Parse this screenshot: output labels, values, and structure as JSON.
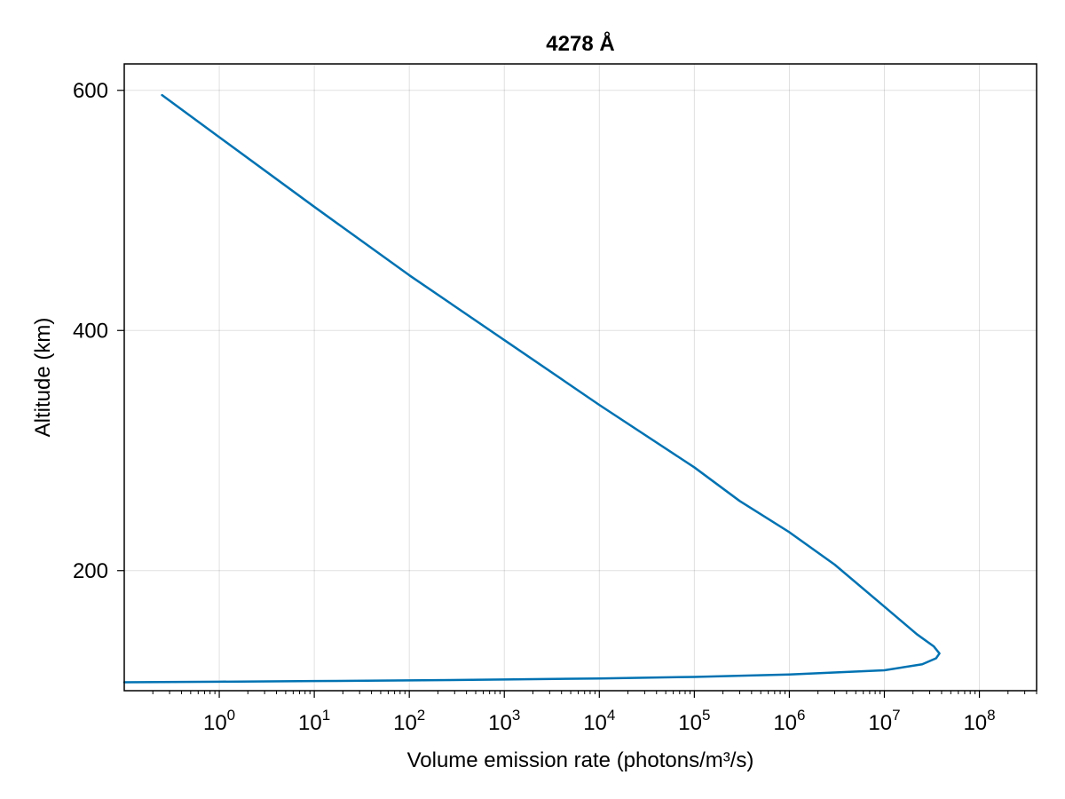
{
  "chart_data": {
    "type": "line",
    "title": "4278 Å",
    "xlabel": "Volume emission rate (photons/m³/s)",
    "ylabel": "Altitude (km)",
    "xscale": "log10",
    "xlim": [
      0.1,
      400000000
    ],
    "ylim": [
      100,
      622
    ],
    "grid": true,
    "legend": "none",
    "line_color": "#0072b2",
    "xticks": [
      {
        "base": "10",
        "exp": "0",
        "value": 1
      },
      {
        "base": "10",
        "exp": "1",
        "value": 10
      },
      {
        "base": "10",
        "exp": "2",
        "value": 100
      },
      {
        "base": "10",
        "exp": "3",
        "value": 1000
      },
      {
        "base": "10",
        "exp": "4",
        "value": 10000
      },
      {
        "base": "10",
        "exp": "5",
        "value": 100000
      },
      {
        "base": "10",
        "exp": "6",
        "value": 1000000
      },
      {
        "base": "10",
        "exp": "7",
        "value": 10000000
      },
      {
        "base": "10",
        "exp": "8",
        "value": 100000000
      }
    ],
    "yticks": [
      {
        "label": "200",
        "value": 200
      },
      {
        "label": "400",
        "value": 400
      },
      {
        "label": "600",
        "value": 600
      }
    ],
    "series": [
      {
        "points": [
          [
            0.1,
            107
          ],
          [
            1,
            107.5
          ],
          [
            10,
            108
          ],
          [
            100,
            108.6
          ],
          [
            1000,
            109.3
          ],
          [
            10000,
            110.2
          ],
          [
            100000,
            111.5
          ],
          [
            1000000,
            113.5
          ],
          [
            10000000,
            117
          ],
          [
            25000000,
            122
          ],
          [
            35000000,
            127
          ],
          [
            38000000,
            131
          ],
          [
            33000000,
            137
          ],
          [
            22000000,
            147
          ],
          [
            10000000,
            170
          ],
          [
            3000000,
            205
          ],
          [
            1000000,
            232
          ],
          [
            300000,
            258
          ],
          [
            100000,
            286
          ],
          [
            10000,
            338
          ],
          [
            1000,
            392
          ],
          [
            100,
            446
          ],
          [
            10,
            503
          ],
          [
            1,
            561
          ],
          [
            0.25,
            596
          ]
        ]
      }
    ]
  }
}
